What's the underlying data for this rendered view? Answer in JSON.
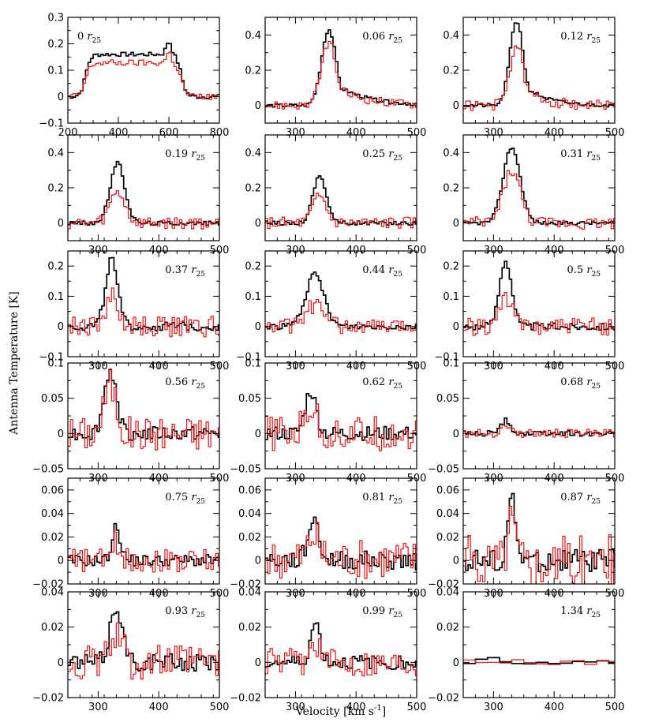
{
  "figure": {
    "ylabel": "Antenna Temperature [K]",
    "xlabel_html": "Velocity [km s",
    "xlabel_sup": "-1",
    "xlabel_end": "]"
  },
  "colors": {
    "series_0": "#000000",
    "series_1": "#ee1111"
  },
  "chart_data": [
    {
      "type": "line",
      "label_main": "0",
      "label_sub": "25",
      "xlim": [
        200,
        800
      ],
      "ylim": [
        -0.1,
        0.3
      ],
      "xticks": [
        200,
        400,
        600,
        800
      ],
      "yticks": [
        -0.1,
        0,
        0.1,
        0.2,
        0.3
      ],
      "ytick_labels": [
        "−0.1",
        "0",
        "0.1",
        "0.2",
        "0.3"
      ],
      "shape": "plateau",
      "center": 600,
      "width": 330,
      "amp": [
        0.2,
        0.16
      ],
      "x_step": 10,
      "seed": 1,
      "noise": [
        0.008,
        0.012
      ],
      "xtick_labels": true
    },
    {
      "type": "line",
      "label_main": "0.06",
      "label_sub": "25",
      "xlim": [
        250,
        500
      ],
      "ylim": [
        -0.1,
        0.5
      ],
      "xticks": [
        300,
        400,
        500
      ],
      "yticks": [
        0,
        0.2,
        0.4
      ],
      "ytick_labels": [
        "0",
        "0.2",
        "0.4"
      ],
      "center": 355,
      "sigma": 12,
      "tail": 50,
      "amp": [
        0.43,
        0.36
      ],
      "x_step": 4,
      "seed": 2,
      "noise": [
        0.01,
        0.025
      ],
      "xtick_labels": true
    },
    {
      "type": "line",
      "label_main": "0.12",
      "label_sub": "25",
      "xlim": [
        250,
        500
      ],
      "ylim": [
        -0.1,
        0.5
      ],
      "xticks": [
        300,
        400,
        500
      ],
      "yticks": [
        0,
        0.2,
        0.4
      ],
      "ytick_labels": [
        "0",
        "0.2",
        "0.4"
      ],
      "center": 338,
      "sigma": 11,
      "tail": 35,
      "amp": [
        0.48,
        0.34
      ],
      "x_step": 4,
      "seed": 3,
      "noise": [
        0.01,
        0.03
      ],
      "xtick_labels": true
    },
    {
      "type": "line",
      "label_main": "0.19",
      "label_sub": "25",
      "xlim": [
        250,
        500
      ],
      "ylim": [
        -0.1,
        0.5
      ],
      "xticks": [
        300,
        400,
        500
      ],
      "yticks": [
        0,
        0.2,
        0.4
      ],
      "ytick_labels": [
        "0",
        "0.2",
        "0.4"
      ],
      "center": 332,
      "sigma": 12,
      "tail": 0,
      "amp": [
        0.34,
        0.18
      ],
      "x_step": 4,
      "seed": 4,
      "noise": [
        0.012,
        0.035
      ],
      "xtick_labels": true
    },
    {
      "type": "line",
      "label_main": "0.25",
      "label_sub": "25",
      "xlim": [
        250,
        500
      ],
      "ylim": [
        -0.1,
        0.5
      ],
      "xticks": [
        300,
        400,
        500
      ],
      "yticks": [
        0,
        0.2,
        0.4
      ],
      "ytick_labels": [
        "0",
        "0.2",
        "0.4"
      ],
      "center": 340,
      "sigma": 11,
      "tail": 0,
      "amp": [
        0.27,
        0.15
      ],
      "x_step": 4,
      "seed": 5,
      "noise": [
        0.012,
        0.035
      ],
      "xtick_labels": true
    },
    {
      "type": "line",
      "label_main": "0.31",
      "label_sub": "25",
      "xlim": [
        250,
        500
      ],
      "ylim": [
        -0.1,
        0.5
      ],
      "xticks": [
        300,
        400,
        500
      ],
      "yticks": [
        0,
        0.2,
        0.4
      ],
      "ytick_labels": [
        "0",
        "0.2",
        "0.4"
      ],
      "center": 330,
      "sigma": 14,
      "tail": 0,
      "amp": [
        0.43,
        0.3
      ],
      "x_step": 4,
      "seed": 6,
      "noise": [
        0.01,
        0.035
      ],
      "xtick_labels": true
    },
    {
      "type": "line",
      "label_main": "0.37",
      "label_sub": "25",
      "xlim": [
        250,
        500
      ],
      "ylim": [
        -0.1,
        0.25
      ],
      "xticks": [
        300,
        400,
        500
      ],
      "yticks": [
        -0.1,
        0,
        0.1,
        0.2
      ],
      "ytick_labels": [
        "−0.1",
        "0",
        "0.1",
        "0.2"
      ],
      "center": 322,
      "sigma": 10,
      "tail": 0,
      "amp": [
        0.22,
        0.1
      ],
      "x_step": 4,
      "seed": 7,
      "noise": [
        0.015,
        0.035
      ],
      "xtick_labels": true
    },
    {
      "type": "line",
      "label_main": "0.44",
      "label_sub": "25",
      "xlim": [
        250,
        500
      ],
      "ylim": [
        -0.1,
        0.25
      ],
      "xticks": [
        300,
        400,
        500
      ],
      "yticks": [
        -0.1,
        0,
        0.1,
        0.2
      ],
      "ytick_labels": [
        "−0.1",
        "0",
        "0.1",
        "0.2"
      ],
      "center": 332,
      "sigma": 15,
      "tail": 0,
      "amp": [
        0.17,
        0.07
      ],
      "x_step": 4,
      "seed": 8,
      "noise": [
        0.01,
        0.025
      ],
      "xtick_labels": true
    },
    {
      "type": "line",
      "label_main": "0.5",
      "label_sub": "25",
      "xlim": [
        250,
        500
      ],
      "ylim": [
        -0.1,
        0.25
      ],
      "xticks": [
        300,
        400,
        500
      ],
      "yticks": [
        -0.1,
        0,
        0.1,
        0.2
      ],
      "ytick_labels": [
        "−0.1",
        "0",
        "0.1",
        "0.2"
      ],
      "center": 320,
      "sigma": 10,
      "tail": 0,
      "amp": [
        0.22,
        0.1
      ],
      "x_step": 4,
      "seed": 9,
      "noise": [
        0.012,
        0.03
      ],
      "xtick_labels": true
    },
    {
      "type": "line",
      "label_main": "0.56",
      "label_sub": "25",
      "xlim": [
        250,
        500
      ],
      "ylim": [
        -0.05,
        0.1
      ],
      "xticks": [
        300,
        400,
        500
      ],
      "yticks": [
        -0.05,
        0,
        0.05,
        0.1
      ],
      "ytick_labels": [
        "−0.05",
        "0",
        "0.05",
        "0.1"
      ],
      "center": 320,
      "sigma": 10,
      "tail": 0,
      "amp": [
        0.09,
        0.07
      ],
      "x_step": 4,
      "seed": 10,
      "noise": [
        0.01,
        0.025
      ],
      "xtick_labels": true
    },
    {
      "type": "line",
      "label_main": "0.62",
      "label_sub": "25",
      "xlim": [
        250,
        500
      ],
      "ylim": [
        -0.05,
        0.1
      ],
      "xticks": [
        300,
        400,
        500
      ],
      "yticks": [
        -0.05,
        0,
        0.05,
        0.1
      ],
      "ytick_labels": [
        "−0.05",
        "0",
        "0.05",
        "0.1"
      ],
      "center": 325,
      "sigma": 9,
      "tail": 0,
      "amp": [
        0.06,
        0.04
      ],
      "x_step": 4,
      "seed": 11,
      "noise": [
        0.01,
        0.025
      ],
      "xtick_labels": true
    },
    {
      "type": "line",
      "label_main": "0.68",
      "label_sub": "25",
      "xlim": [
        250,
        500
      ],
      "ylim": [
        -0.05,
        0.1
      ],
      "xticks": [
        300,
        400,
        500
      ],
      "yticks": [
        -0.05,
        0,
        0.05,
        0.1
      ],
      "ytick_labels": [
        "−0.05",
        "0",
        "0.05",
        "0.1"
      ],
      "center": 320,
      "sigma": 8,
      "tail": 0,
      "amp": [
        0.018,
        0.012
      ],
      "x_step": 4,
      "seed": 12,
      "noise": [
        0.004,
        0.006
      ],
      "xtick_labels": true
    },
    {
      "type": "line",
      "label_main": "0.75",
      "label_sub": "25",
      "xlim": [
        250,
        500
      ],
      "ylim": [
        -0.02,
        0.07
      ],
      "xticks": [
        300,
        400,
        500
      ],
      "yticks": [
        -0.02,
        0,
        0.02,
        0.04,
        0.06
      ],
      "ytick_labels": [
        "−0.02",
        "0",
        "0.02",
        "0.04",
        "0.06"
      ],
      "center": 330,
      "sigma": 7,
      "tail": 0,
      "amp": [
        0.028,
        0.015
      ],
      "x_step": 4,
      "seed": 13,
      "noise": [
        0.005,
        0.01
      ],
      "xtick_labels": true
    },
    {
      "type": "line",
      "label_main": "0.81",
      "label_sub": "25",
      "xlim": [
        250,
        500
      ],
      "ylim": [
        -0.02,
        0.07
      ],
      "xticks": [
        300,
        400,
        500
      ],
      "yticks": [
        -0.02,
        0,
        0.02,
        0.04,
        0.06
      ],
      "ytick_labels": [
        "−0.02",
        "0",
        "0.02",
        "0.04",
        "0.06"
      ],
      "center": 330,
      "sigma": 9,
      "tail": 0,
      "amp": [
        0.035,
        0.02
      ],
      "x_step": 4,
      "seed": 14,
      "noise": [
        0.008,
        0.017
      ],
      "xtick_labels": true
    },
    {
      "type": "line",
      "label_main": "0.87",
      "label_sub": "25",
      "xlim": [
        250,
        500
      ],
      "ylim": [
        -0.02,
        0.07
      ],
      "xticks": [
        300,
        400,
        500
      ],
      "yticks": [
        -0.02,
        0,
        0.02,
        0.04,
        0.06
      ],
      "ytick_labels": [
        "−0.02",
        "0",
        "0.02",
        "0.04",
        "0.06"
      ],
      "center": 330,
      "sigma": 7,
      "tail": 0,
      "amp": [
        0.05,
        0.035
      ],
      "x_step": 4,
      "seed": 15,
      "noise": [
        0.01,
        0.022
      ],
      "xtick_labels": true
    },
    {
      "type": "line",
      "label_main": "0.93",
      "label_sub": "25",
      "xlim": [
        250,
        500
      ],
      "ylim": [
        -0.02,
        0.04
      ],
      "xticks": [
        300,
        400,
        500
      ],
      "yticks": [
        -0.02,
        0,
        0.02,
        0.04
      ],
      "ytick_labels": [
        "−0.02",
        "0",
        "0.02",
        "0.04"
      ],
      "center": 330,
      "sigma": 10,
      "tail": 0,
      "amp": [
        0.032,
        0.015
      ],
      "x_step": 4,
      "seed": 16,
      "noise": [
        0.005,
        0.01
      ],
      "xtick_labels": true
    },
    {
      "type": "line",
      "label_main": "0.99",
      "label_sub": "25",
      "xlim": [
        250,
        500
      ],
      "ylim": [
        -0.02,
        0.04
      ],
      "xticks": [
        300,
        400,
        500
      ],
      "yticks": [
        -0.02,
        0,
        0.02,
        0.04
      ],
      "ytick_labels": [
        "−0.02",
        "0",
        "0.02",
        "0.04"
      ],
      "center": 333,
      "sigma": 8,
      "tail": 0,
      "amp": [
        0.022,
        0.012
      ],
      "x_step": 4,
      "seed": 17,
      "noise": [
        0.004,
        0.008
      ],
      "xtick_labels": true
    },
    {
      "type": "line",
      "label_main": "1.34",
      "label_sub": "25",
      "xlim": [
        250,
        500
      ],
      "ylim": [
        -0.02,
        0.04
      ],
      "xticks": [
        300,
        400,
        500
      ],
      "yticks": [
        -0.02,
        0,
        0.02,
        0.04
      ],
      "ytick_labels": [
        "−0.02",
        "0",
        "0.02",
        "0.04"
      ],
      "center": 300,
      "sigma": 20,
      "tail": 0,
      "amp": [
        0.002,
        0.0
      ],
      "x_step": 20,
      "seed": 18,
      "noise": [
        0.001,
        0.0015
      ],
      "xtick_labels": true
    }
  ]
}
